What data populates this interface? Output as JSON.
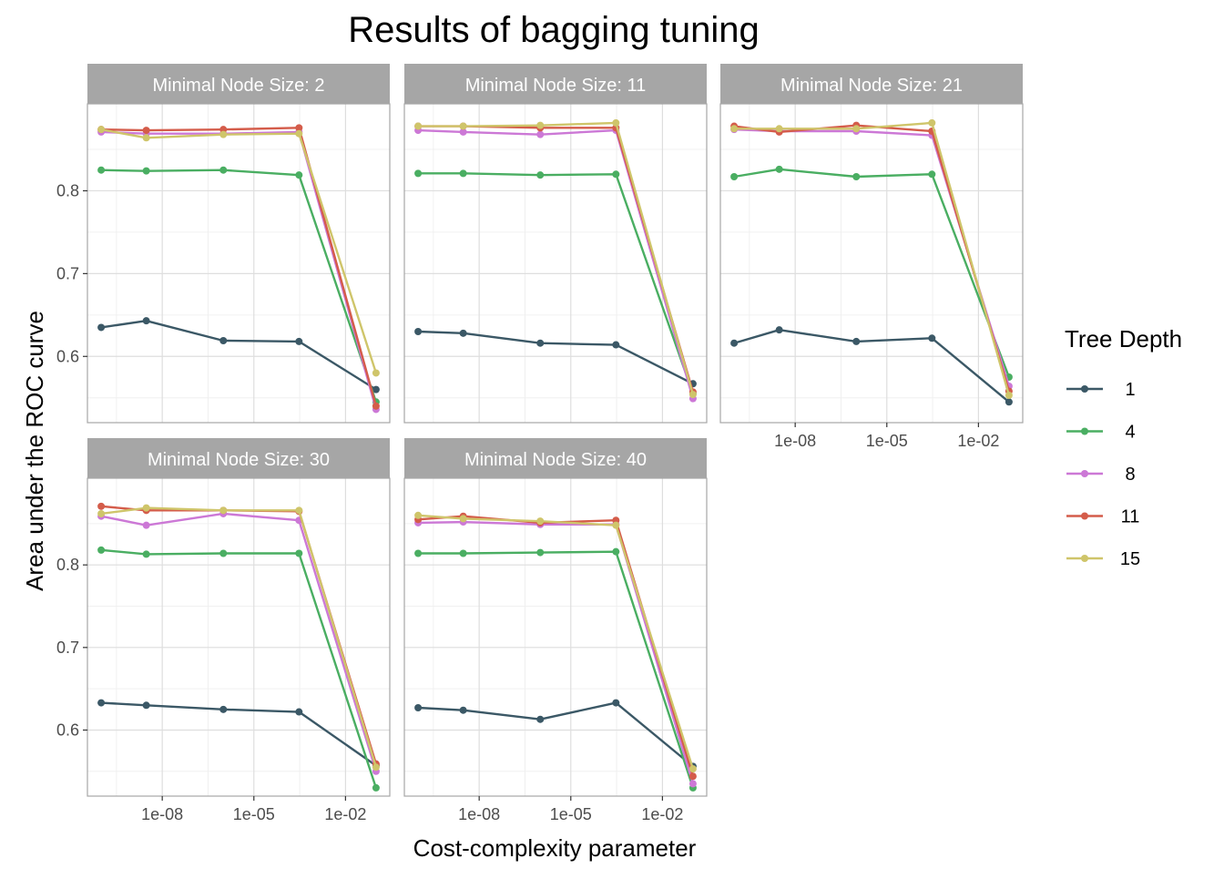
{
  "chart_data": {
    "type": "line",
    "title": "Results of bagging tuning",
    "xlabel": "Cost-complexity parameter",
    "ylabel": "Area under the ROC curve",
    "x_scale": "log10",
    "x_ticks": [
      1e-08,
      1e-05,
      0.01
    ],
    "x_tick_labels": [
      "1e-08",
      "1e-05",
      "1e-02"
    ],
    "y_ticks": [
      0.6,
      0.7,
      0.8
    ],
    "y_tick_labels": [
      "0.6",
      "0.7",
      "0.8"
    ],
    "ylim": [
      0.52,
      0.905
    ],
    "grid": true,
    "legend": {
      "title": "Tree Depth",
      "position": "right",
      "entries": [
        {
          "label": "1",
          "color": "#3B5866"
        },
        {
          "label": "4",
          "color": "#4AAE62"
        },
        {
          "label": "8",
          "color": "#CC78D6"
        },
        {
          "label": "11",
          "color": "#D45C4A"
        },
        {
          "label": "15",
          "color": "#CFC56A"
        }
      ]
    },
    "x": [
      1e-10,
      3e-09,
      1e-06,
      0.0003,
      0.1
    ],
    "panels": [
      {
        "label": "Minimal Node Size: 2",
        "series": [
          {
            "name": "1",
            "values": [
              0.635,
              0.643,
              0.619,
              0.618,
              0.56
            ]
          },
          {
            "name": "4",
            "values": [
              0.825,
              0.824,
              0.825,
              0.819,
              0.545
            ]
          },
          {
            "name": "8",
            "values": [
              0.871,
              0.869,
              0.869,
              0.871,
              0.536
            ]
          },
          {
            "name": "11",
            "values": [
              0.874,
              0.873,
              0.874,
              0.876,
              0.54
            ]
          },
          {
            "name": "15",
            "values": [
              0.874,
              0.864,
              0.868,
              0.869,
              0.58
            ]
          }
        ]
      },
      {
        "label": "Minimal Node Size: 11",
        "series": [
          {
            "name": "1",
            "values": [
              0.63,
              0.628,
              0.616,
              0.614,
              0.567
            ]
          },
          {
            "name": "4",
            "values": [
              0.821,
              0.821,
              0.819,
              0.82,
              0.555
            ]
          },
          {
            "name": "8",
            "values": [
              0.873,
              0.871,
              0.868,
              0.873,
              0.549
            ]
          },
          {
            "name": "11",
            "values": [
              0.878,
              0.878,
              0.876,
              0.876,
              0.557
            ]
          },
          {
            "name": "15",
            "values": [
              0.878,
              0.878,
              0.879,
              0.882,
              0.554
            ]
          }
        ]
      },
      {
        "label": "Minimal Node Size: 21",
        "series": [
          {
            "name": "1",
            "values": [
              0.616,
              0.632,
              0.618,
              0.622,
              0.545
            ]
          },
          {
            "name": "4",
            "values": [
              0.817,
              0.826,
              0.817,
              0.82,
              0.575
            ]
          },
          {
            "name": "8",
            "values": [
              0.874,
              0.872,
              0.872,
              0.867,
              0.564
            ]
          },
          {
            "name": "11",
            "values": [
              0.878,
              0.871,
              0.879,
              0.872,
              0.558
            ]
          },
          {
            "name": "15",
            "values": [
              0.875,
              0.875,
              0.875,
              0.882,
              0.553
            ]
          }
        ]
      },
      {
        "label": "Minimal Node Size: 30",
        "series": [
          {
            "name": "1",
            "values": [
              0.633,
              0.63,
              0.625,
              0.622,
              0.557
            ]
          },
          {
            "name": "4",
            "values": [
              0.818,
              0.813,
              0.814,
              0.814,
              0.53
            ]
          },
          {
            "name": "8",
            "values": [
              0.859,
              0.848,
              0.862,
              0.854,
              0.55
            ]
          },
          {
            "name": "11",
            "values": [
              0.871,
              0.866,
              0.866,
              0.865,
              0.559
            ]
          },
          {
            "name": "15",
            "values": [
              0.862,
              0.869,
              0.866,
              0.866,
              0.555
            ]
          }
        ]
      },
      {
        "label": "Minimal Node Size: 40",
        "series": [
          {
            "name": "1",
            "values": [
              0.627,
              0.624,
              0.613,
              0.633,
              0.556
            ]
          },
          {
            "name": "4",
            "values": [
              0.814,
              0.814,
              0.815,
              0.816,
              0.53
            ]
          },
          {
            "name": "8",
            "values": [
              0.851,
              0.852,
              0.849,
              0.849,
              0.535
            ]
          },
          {
            "name": "11",
            "values": [
              0.855,
              0.859,
              0.851,
              0.854,
              0.544
            ]
          },
          {
            "name": "15",
            "values": [
              0.86,
              0.856,
              0.853,
              0.848,
              0.553
            ]
          }
        ]
      }
    ]
  }
}
